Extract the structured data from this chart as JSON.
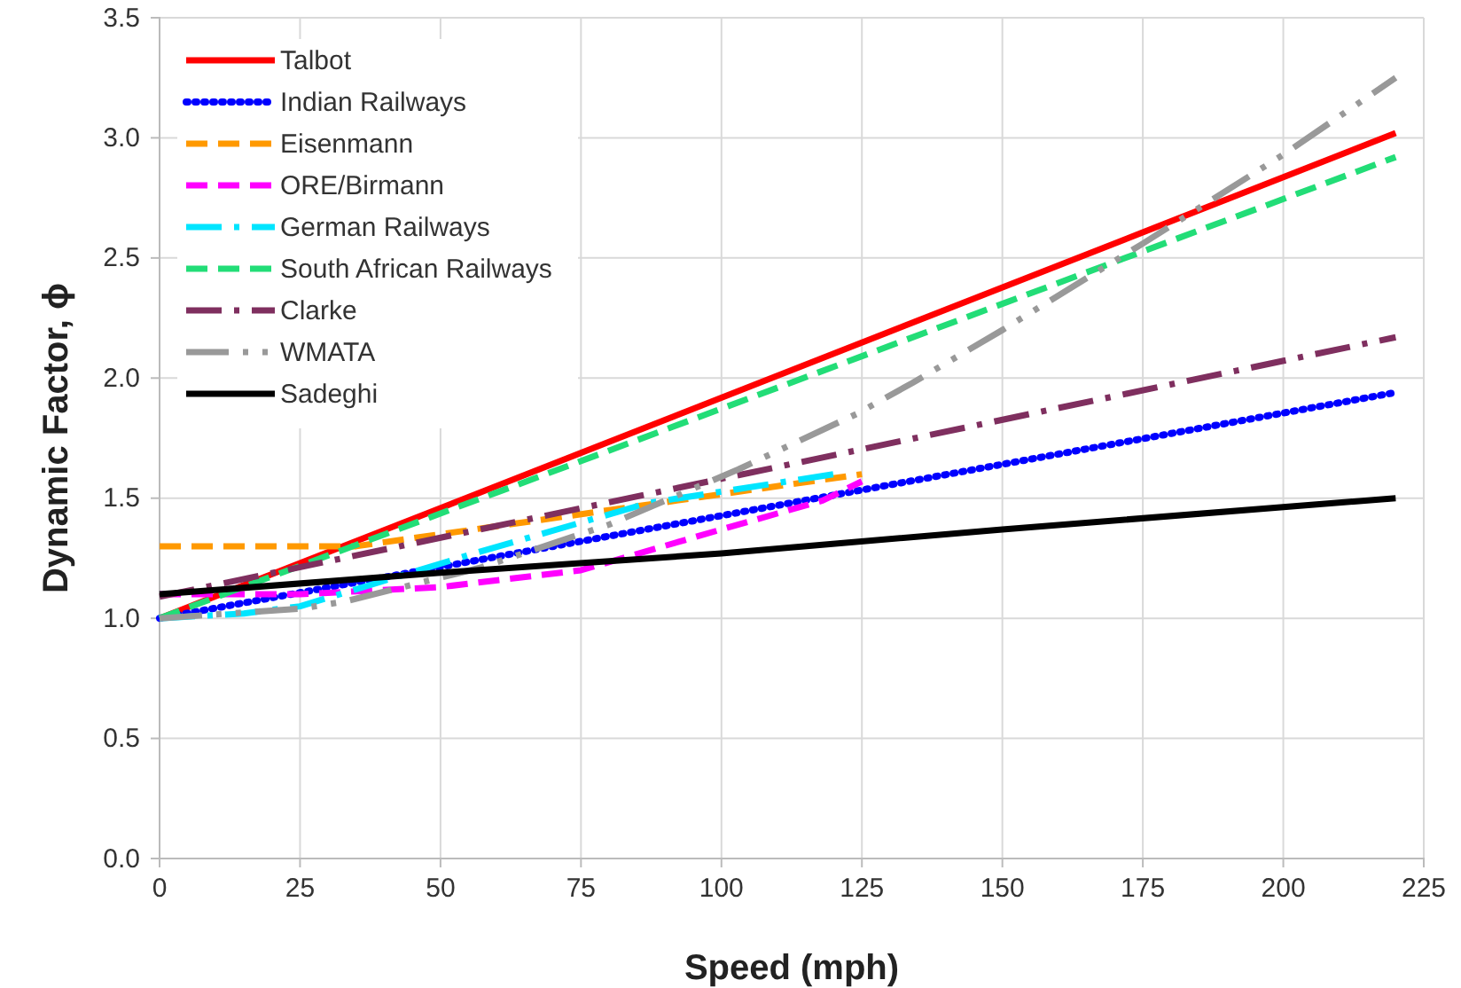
{
  "chart_data": {
    "type": "line",
    "xlabel": "Speed (mph)",
    "ylabel": "Dynamic Factor, ϕ",
    "xlim": [
      0,
      225
    ],
    "xticks": [
      0,
      25,
      50,
      75,
      100,
      125,
      150,
      175,
      200,
      225
    ],
    "ylim": [
      0,
      3.5
    ],
    "yticks": [
      {
        "value": 0,
        "label": "0.0"
      },
      {
        "value": 0.5,
        "label": "0.5"
      },
      {
        "value": 1,
        "label": "1.0"
      },
      {
        "value": 1.5,
        "label": "1.5"
      },
      {
        "value": 2,
        "label": "2.0"
      },
      {
        "value": 2.5,
        "label": "2.5"
      },
      {
        "value": 3,
        "label": "3.0"
      },
      {
        "value": 3.5,
        "label": "3.5"
      }
    ],
    "grid": true,
    "legend": "top left",
    "marker": "none",
    "series": [
      {
        "name": "Talbot",
        "color": "#ff0000",
        "line_style": "solid",
        "x": [
          0,
          220
        ],
        "values": [
          1.0,
          3.02
        ]
      },
      {
        "name": "Indian Railways",
        "color": "#0000ff",
        "line_style": "dotted",
        "x": [
          0,
          220
        ],
        "values": [
          1.0,
          1.94
        ]
      },
      {
        "name": "Eisenmann",
        "color": "#ff9900",
        "line_style": "dashed",
        "x": [
          0,
          35,
          125
        ],
        "values": [
          1.3,
          1.3,
          1.6
        ]
      },
      {
        "name": "ORE/Birmann",
        "color": "#ff00ff",
        "line_style": "dashed",
        "x": [
          0,
          25,
          50,
          75,
          100,
          118,
          125
        ],
        "values": [
          1.1,
          1.1,
          1.13,
          1.2,
          1.37,
          1.49,
          1.57
        ]
      },
      {
        "name": "German Railways",
        "color": "#00e5ff",
        "line_style": "dashdot",
        "x": [
          0,
          15,
          25,
          56,
          87,
          120
        ],
        "values": [
          1.0,
          1.02,
          1.05,
          1.27,
          1.48,
          1.6
        ]
      },
      {
        "name": "South African Railways",
        "color": "#22dd77",
        "line_style": "dashed",
        "x": [
          0,
          220
        ],
        "values": [
          1.0,
          2.92
        ]
      },
      {
        "name": "Clarke",
        "color": "#7f2f5f",
        "line_style": "dashdot",
        "x": [
          0,
          220
        ],
        "values": [
          1.09,
          2.17
        ]
      },
      {
        "name": "WMATA",
        "color": "#999999",
        "line_style": "dashdotdot",
        "x": [
          0,
          25,
          33,
          57,
          80,
          103,
          124,
          134,
          150,
          175,
          200,
          220
        ],
        "values": [
          1.0,
          1.04,
          1.07,
          1.21,
          1.39,
          1.62,
          1.85,
          1.98,
          2.2,
          2.56,
          2.93,
          3.25
        ]
      },
      {
        "name": "Sadeghi",
        "color": "#000000",
        "line_style": "solid",
        "x": [
          0,
          50,
          100,
          150,
          220
        ],
        "values": [
          1.1,
          1.19,
          1.27,
          1.37,
          1.5
        ]
      }
    ]
  }
}
